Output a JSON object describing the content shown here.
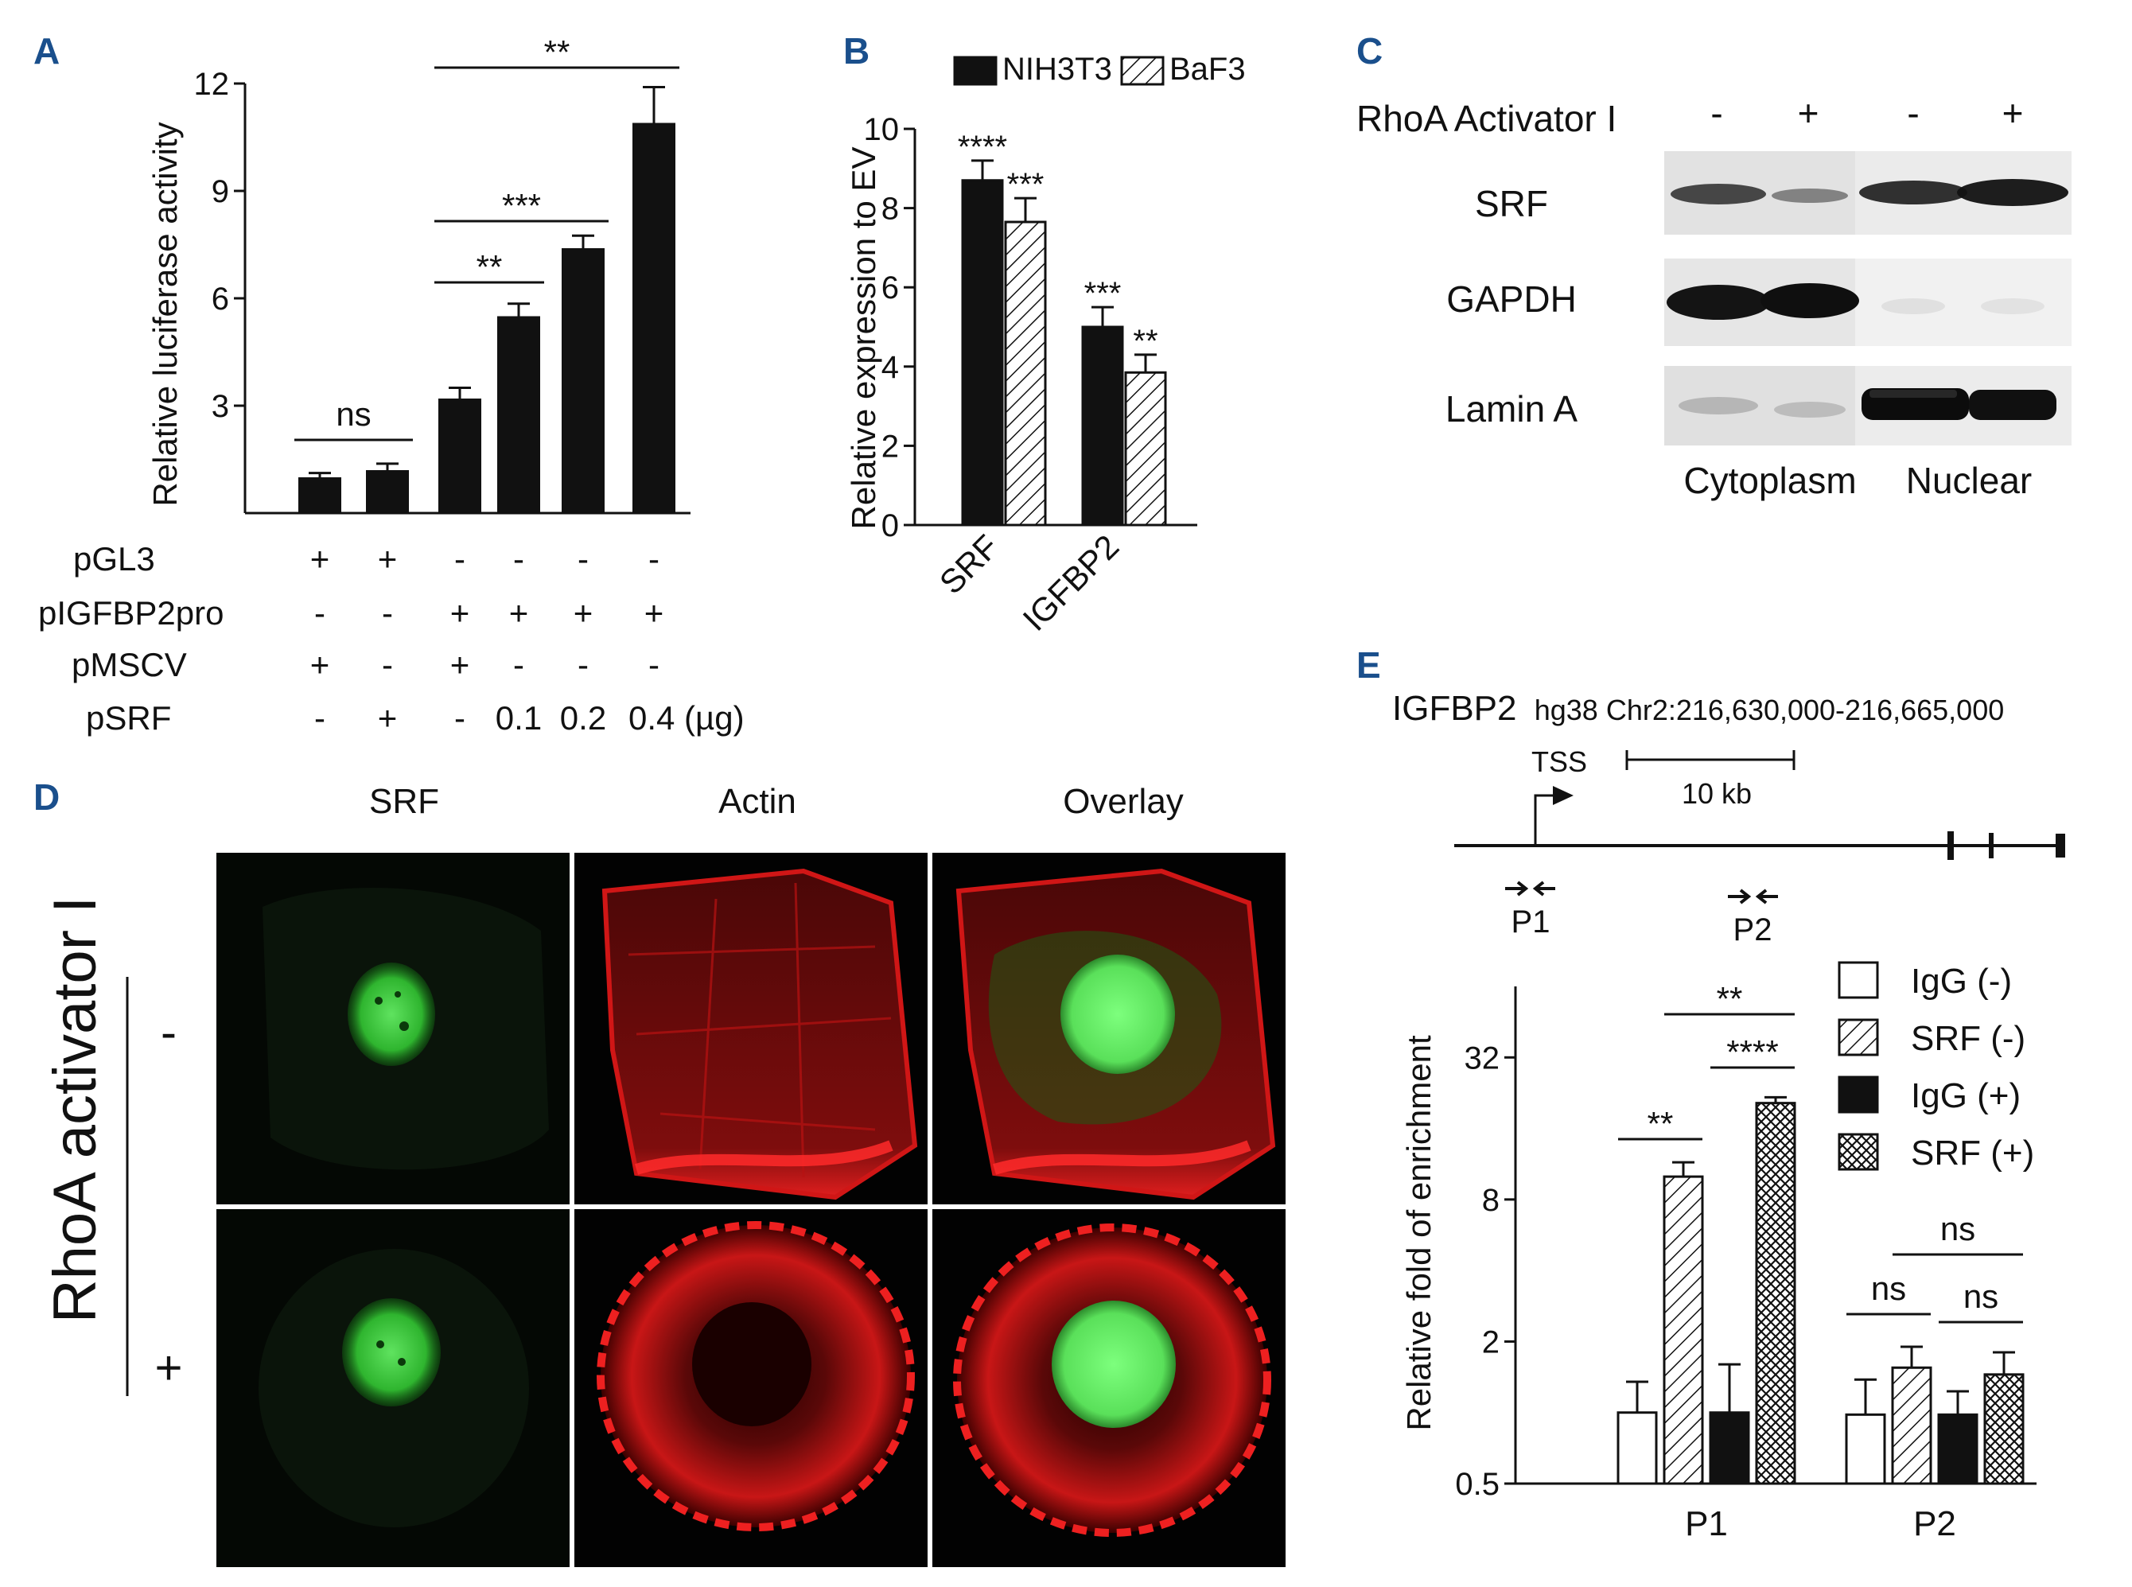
{
  "panels": {
    "A": {
      "letter": "A",
      "chart_data": {
        "type": "bar",
        "ylabel": "Relative luciferase activity",
        "ylim": [
          0,
          12
        ],
        "yticks": [
          "3",
          "6",
          "9",
          "12"
        ],
        "values": [
          1.0,
          1.2,
          3.2,
          5.5,
          7.4,
          10.9
        ],
        "errors": [
          0.12,
          0.18,
          0.3,
          0.35,
          0.35,
          1.0
        ],
        "conditions": {
          "labels": [
            "pGL3",
            "pIGFBP2pro",
            "pMSCV",
            "pSRF"
          ],
          "rows": [
            [
              "+",
              "+",
              "-",
              "-",
              "-",
              "-"
            ],
            [
              "-",
              "-",
              "+",
              "+",
              "+",
              "+"
            ],
            [
              "+",
              "-",
              "+",
              "-",
              "-",
              "-"
            ],
            [
              "-",
              "+",
              "-",
              "0.1",
              "0.2",
              "0.4 (µg)"
            ]
          ]
        },
        "significance": [
          {
            "label": "ns",
            "from": 0,
            "to": 1
          },
          {
            "label": "**",
            "from": 2,
            "to": 3
          },
          {
            "label": "***",
            "from": 2,
            "to": 4
          },
          {
            "label": "**",
            "from": 2,
            "to": 5
          }
        ]
      }
    },
    "B": {
      "letter": "B",
      "chart_data": {
        "type": "bar",
        "ylabel": "Relative expression to EV",
        "ylim": [
          0,
          10
        ],
        "yticks": [
          "0",
          "2",
          "4",
          "6",
          "8",
          "10"
        ],
        "categories": [
          "SRF",
          "IGFBP2"
        ],
        "series": [
          {
            "name": "NIH3T3",
            "values": [
              8.7,
              5.0
            ],
            "errors": [
              0.5,
              0.5
            ],
            "stars": [
              "****",
              "***"
            ]
          },
          {
            "name": "BaF3",
            "values": [
              7.65,
              3.85
            ],
            "errors": [
              0.6,
              0.45
            ],
            "stars": [
              "***",
              "**"
            ]
          }
        ]
      }
    },
    "C": {
      "letter": "C",
      "treatment_label": "RhoA Activator I",
      "treatment_signs": [
        "-",
        "+",
        "-",
        "+"
      ],
      "rows": [
        "SRF",
        "GAPDH",
        "Lamin A"
      ],
      "fractions": [
        "Cytoplasm",
        "Nuclear"
      ]
    },
    "D": {
      "letter": "D",
      "columns": [
        "SRF",
        "Actin",
        "Overlay"
      ],
      "side_label": "RhoA activator I",
      "row_signs": [
        "-",
        "+"
      ]
    },
    "E": {
      "letter": "E",
      "gene": "IGFBP2",
      "locus": "hg38 Chr2:216,630,000-216,665,000",
      "tss": "TSS",
      "scale": "10 kb",
      "primers": [
        "P1",
        "P2"
      ],
      "chart_data": {
        "type": "bar",
        "scale": "log2",
        "ylabel": "Relative fold of enrichment",
        "ylim": [
          0.5,
          64
        ],
        "yticks": [
          "0.5",
          "2",
          "8",
          "32"
        ],
        "categories": [
          "P1",
          "P2"
        ],
        "series": [
          {
            "name": "IgG (-)",
            "values": [
              1.0,
              0.98
            ],
            "errors": [
              0.35,
              0.4
            ]
          },
          {
            "name": "SRF (-)",
            "values": [
              10.0,
              1.55
            ],
            "errors": [
              1.5,
              0.35
            ]
          },
          {
            "name": "IgG (+)",
            "values": [
              1.0,
              0.98
            ],
            "errors": [
              0.6,
              0.25
            ]
          },
          {
            "name": "SRF (+)",
            "values": [
              20.5,
              1.45
            ],
            "errors": [
              1.2,
              0.35
            ]
          }
        ],
        "significance": [
          {
            "label": "**",
            "cat": 0,
            "from": 0,
            "to": 1
          },
          {
            "label": "**",
            "cat": 0,
            "from": 1,
            "to": 3
          },
          {
            "label": "****",
            "cat": 0,
            "from": 2,
            "to": 3
          },
          {
            "label": "ns",
            "cat": 1,
            "from": 0,
            "to": 1
          },
          {
            "label": "ns",
            "cat": 1,
            "from": 2,
            "to": 3
          },
          {
            "label": "ns",
            "cat": 1,
            "from": 1,
            "to": 3
          }
        ]
      }
    }
  }
}
